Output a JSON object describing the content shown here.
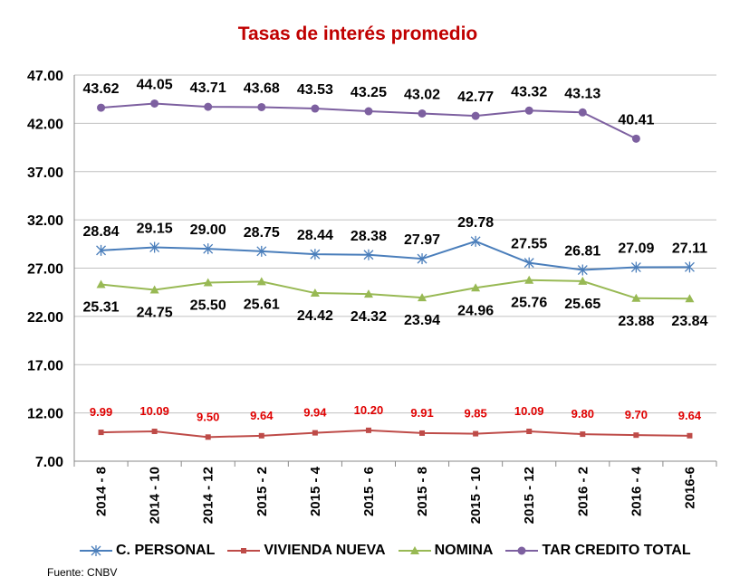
{
  "chart_data": {
    "type": "line",
    "title": "Tasas de interés promedio",
    "categories": [
      "2014 - 8",
      "2014 - 10",
      "2014 - 12",
      "2015 - 2",
      "2015 - 4",
      "2015 - 6",
      "2015 - 8",
      "2015 - 10",
      "2015 - 12",
      "2016 - 2",
      "2016 - 4",
      "2016-6"
    ],
    "ylim": [
      7,
      47
    ],
    "yticks": [
      "7.00",
      "12.00",
      "17.00",
      "22.00",
      "27.00",
      "32.00",
      "37.00",
      "42.00",
      "47.00"
    ],
    "grid": true,
    "legend_position": "bottom",
    "series": [
      {
        "name": "C. PERSONAL",
        "color": "#4a7ebb",
        "marker": "star",
        "label_color": "#000000",
        "label_pos": "above",
        "values": [
          28.84,
          29.15,
          29.0,
          28.75,
          28.44,
          28.38,
          27.97,
          29.78,
          27.55,
          26.81,
          27.09,
          27.11
        ]
      },
      {
        "name": "VIVIENDA NUEVA",
        "color": "#be4b48",
        "marker": "square",
        "label_color": "#e00000",
        "label_pos": "above",
        "values": [
          9.99,
          10.09,
          9.5,
          9.64,
          9.94,
          10.2,
          9.91,
          9.85,
          10.09,
          9.8,
          9.7,
          9.64
        ]
      },
      {
        "name": "NOMINA",
        "color": "#98b954",
        "marker": "triangle",
        "label_color": "#000000",
        "label_pos": "below",
        "values": [
          25.31,
          24.75,
          25.5,
          25.61,
          24.42,
          24.32,
          23.94,
          24.96,
          25.76,
          25.65,
          23.88,
          23.84
        ]
      },
      {
        "name": "TAR CREDITO TOTAL",
        "color": "#7d60a0",
        "marker": "circle",
        "label_color": "#000000",
        "label_pos": "above",
        "values": [
          43.62,
          44.05,
          43.71,
          43.68,
          43.53,
          43.25,
          43.02,
          42.77,
          43.32,
          43.13,
          40.41,
          null
        ]
      }
    ]
  },
  "source": "Fuente: CNBV"
}
